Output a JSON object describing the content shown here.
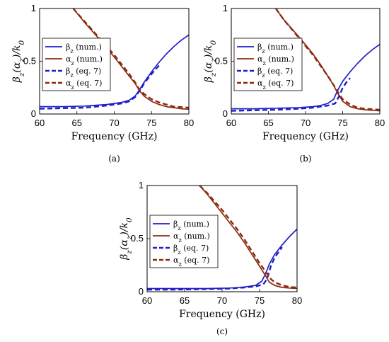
{
  "chart_data": [
    {
      "type": "line",
      "caption": "(a)",
      "xlabel": "Frequency (GHz)",
      "ylabel": "β_z(α_z)/k_0",
      "xlim": [
        60,
        80
      ],
      "ylim": [
        0,
        1
      ],
      "xticks": [
        "60",
        "65",
        "70",
        "75",
        "80"
      ],
      "yticks": [
        "0",
        "0.5",
        "1"
      ],
      "legend_position": "top-left",
      "series": [
        {
          "name": "β_z (num.)",
          "color": "#1f1fc8",
          "style": "solid",
          "x": [
            60,
            63,
            66,
            69,
            71,
            72,
            72.8,
            73.3,
            74,
            75,
            76,
            77,
            78,
            79,
            80
          ],
          "y": [
            0.07,
            0.07,
            0.075,
            0.09,
            0.11,
            0.13,
            0.17,
            0.22,
            0.3,
            0.4,
            0.49,
            0.57,
            0.64,
            0.7,
            0.75
          ]
        },
        {
          "name": "α_z (num.)",
          "color": "#8b2a10",
          "style": "solid",
          "x": [
            64.5,
            66,
            68,
            70,
            71,
            72,
            72.8,
            73.3,
            74,
            75,
            76,
            77,
            78,
            79,
            80
          ],
          "y": [
            1.0,
            0.87,
            0.71,
            0.54,
            0.45,
            0.36,
            0.29,
            0.23,
            0.17,
            0.12,
            0.09,
            0.07,
            0.06,
            0.05,
            0.045
          ]
        },
        {
          "name": "β_z (eq. 7)",
          "color": "#1f1fc8",
          "style": "dashed",
          "x": [
            60,
            63,
            66,
            69,
            71,
            72,
            72.8,
            73.3,
            73.6,
            74,
            75,
            76
          ],
          "y": [
            0.05,
            0.055,
            0.06,
            0.08,
            0.1,
            0.12,
            0.16,
            0.21,
            0.24,
            0.29,
            0.38,
            0.46
          ]
        },
        {
          "name": "α_z (eq. 7)",
          "color": "#8b2a10",
          "style": "dashed",
          "x": [
            64.5,
            66,
            68,
            70,
            71,
            72,
            72.8,
            73.3,
            74,
            75,
            76,
            77,
            78,
            79,
            80
          ],
          "y": [
            1.0,
            0.88,
            0.72,
            0.56,
            0.47,
            0.38,
            0.3,
            0.24,
            0.19,
            0.14,
            0.11,
            0.09,
            0.07,
            0.065,
            0.06
          ]
        }
      ]
    },
    {
      "type": "line",
      "caption": "(b)",
      "xlabel": "Frequency (GHz)",
      "ylabel": "β_z(α_z)/k_0",
      "xlim": [
        60,
        80
      ],
      "ylim": [
        0,
        1
      ],
      "xticks": [
        "60",
        "65",
        "70",
        "75",
        "80"
      ],
      "yticks": [
        "0",
        "0.5",
        "1"
      ],
      "legend_position": "top-left",
      "series": [
        {
          "name": "β_z (num.)",
          "color": "#1f1fc8",
          "style": "solid",
          "x": [
            60,
            63,
            66,
            69,
            71,
            72,
            73,
            73.8,
            74.3,
            75,
            76,
            77,
            78,
            79,
            80
          ],
          "y": [
            0.05,
            0.05,
            0.055,
            0.06,
            0.07,
            0.08,
            0.1,
            0.14,
            0.22,
            0.31,
            0.4,
            0.48,
            0.55,
            0.61,
            0.66
          ]
        },
        {
          "name": "α_z (num.)",
          "color": "#8b2a10",
          "style": "solid",
          "x": [
            66,
            67,
            69,
            71,
            72,
            73,
            73.8,
            74.3,
            75,
            76,
            77,
            78,
            79,
            80
          ],
          "y": [
            1.0,
            0.9,
            0.74,
            0.57,
            0.47,
            0.36,
            0.27,
            0.2,
            0.12,
            0.07,
            0.05,
            0.04,
            0.035,
            0.03
          ]
        },
        {
          "name": "β_z (eq. 7)",
          "color": "#1f1fc8",
          "style": "dashed",
          "x": [
            60,
            63,
            66,
            69,
            71,
            72,
            73,
            74,
            74.6,
            75,
            75.5,
            76
          ],
          "y": [
            0.03,
            0.035,
            0.04,
            0.05,
            0.06,
            0.07,
            0.08,
            0.1,
            0.18,
            0.25,
            0.3,
            0.34
          ]
        },
        {
          "name": "α_z (eq. 7)",
          "color": "#8b2a10",
          "style": "dashed",
          "x": [
            66,
            67,
            69,
            71,
            72,
            73,
            74,
            74.6,
            75,
            76,
            77,
            78,
            79,
            80
          ],
          "y": [
            1.0,
            0.9,
            0.73,
            0.56,
            0.46,
            0.36,
            0.25,
            0.18,
            0.14,
            0.09,
            0.06,
            0.05,
            0.045,
            0.04
          ]
        }
      ]
    },
    {
      "type": "line",
      "caption": "(c)",
      "xlabel": "Frequency (GHz)",
      "ylabel": "β_z(α_z)/k_0",
      "xlim": [
        60,
        80
      ],
      "ylim": [
        0,
        1
      ],
      "xticks": [
        "60",
        "65",
        "70",
        "75",
        "80"
      ],
      "yticks": [
        "0",
        "0.5",
        "1"
      ],
      "legend_position": "top-left",
      "series": [
        {
          "name": "β_z (num.)",
          "color": "#1f1fc8",
          "style": "solid",
          "x": [
            60,
            64,
            68,
            71,
            73,
            74.5,
            75.3,
            75.8,
            76.3,
            77,
            78,
            79,
            80
          ],
          "y": [
            0.03,
            0.03,
            0.03,
            0.035,
            0.045,
            0.06,
            0.1,
            0.17,
            0.26,
            0.35,
            0.44,
            0.52,
            0.59
          ]
        },
        {
          "name": "α_z (num.)",
          "color": "#8b2a10",
          "style": "solid",
          "x": [
            67,
            68,
            70,
            72,
            73,
            74,
            75,
            75.8,
            76.3,
            77,
            78,
            79,
            80
          ],
          "y": [
            1.0,
            0.92,
            0.74,
            0.56,
            0.46,
            0.35,
            0.24,
            0.15,
            0.09,
            0.06,
            0.04,
            0.035,
            0.03
          ]
        },
        {
          "name": "β_z (eq. 7)",
          "color": "#1f1fc8",
          "style": "dashed",
          "x": [
            60,
            64,
            68,
            71,
            73,
            74.5,
            75.5,
            76,
            76.5,
            77,
            78
          ],
          "y": [
            0.02,
            0.02,
            0.025,
            0.03,
            0.04,
            0.05,
            0.07,
            0.12,
            0.24,
            0.32,
            0.42
          ]
        },
        {
          "name": "α_z (eq. 7)",
          "color": "#8b2a10",
          "style": "dashed",
          "x": [
            67,
            68,
            70,
            72,
            73,
            74,
            75,
            76,
            76.5,
            77,
            78,
            79,
            80
          ],
          "y": [
            1.0,
            0.93,
            0.77,
            0.59,
            0.49,
            0.38,
            0.27,
            0.17,
            0.12,
            0.09,
            0.06,
            0.045,
            0.04
          ]
        }
      ]
    }
  ]
}
